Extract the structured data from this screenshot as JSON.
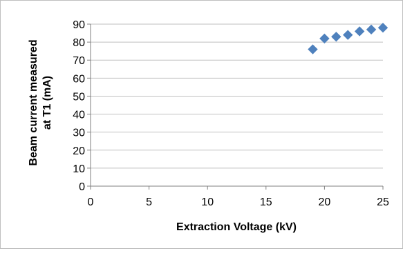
{
  "chart_data": {
    "type": "scatter",
    "title": "",
    "xlabel": "Extraction Voltage (kV)",
    "ylabel": [
      "Beam current measured",
      "at T1 (mA)"
    ],
    "xlim": [
      0,
      25
    ],
    "ylim": [
      0,
      90
    ],
    "x_ticks": [
      0,
      5,
      10,
      15,
      20,
      25
    ],
    "y_ticks": [
      0,
      10,
      20,
      30,
      40,
      50,
      60,
      70,
      80,
      90
    ],
    "grid": "horizontal",
    "legend": "none",
    "marker": "diamond",
    "marker_color": "#4f81bd",
    "points": [
      {
        "x": 19,
        "y": 76
      },
      {
        "x": 20,
        "y": 82
      },
      {
        "x": 21,
        "y": 83
      },
      {
        "x": 22,
        "y": 84
      },
      {
        "x": 23,
        "y": 86
      },
      {
        "x": 24,
        "y": 87
      },
      {
        "x": 25,
        "y": 88
      }
    ]
  }
}
